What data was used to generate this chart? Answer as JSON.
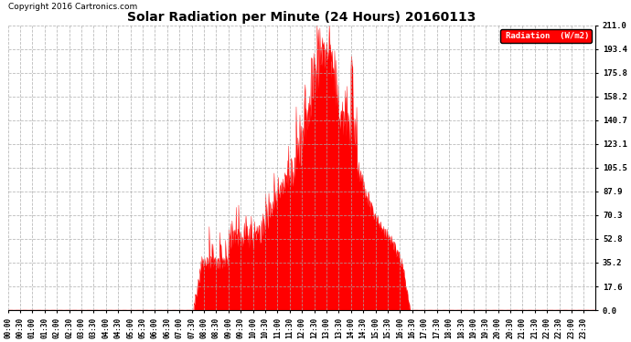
{
  "title": "Solar Radiation per Minute (24 Hours) 20160113",
  "copyright": "Copyright 2016 Cartronics.com",
  "legend_label": "Radiation  (W/m2)",
  "background_color": "#ffffff",
  "plot_background": "#ffffff",
  "grid_color": "#aaaaaa",
  "fill_color": "#ff0000",
  "line_color": "#ff0000",
  "ylim": [
    0.0,
    211.0
  ],
  "yticks": [
    0.0,
    17.6,
    35.2,
    52.8,
    70.3,
    87.9,
    105.5,
    123.1,
    140.7,
    158.2,
    175.8,
    193.4,
    211.0
  ],
  "x_tick_interval": 30,
  "total_minutes": 1440,
  "sunrise_min": 455,
  "sunset_min": 985
}
